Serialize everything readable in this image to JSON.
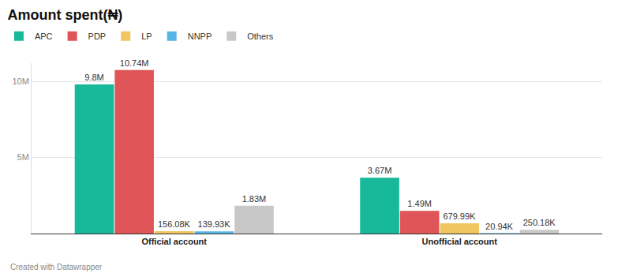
{
  "chart_data": {
    "type": "bar",
    "title": "Amount spent(₦)",
    "annotations": [
      "Created with Datawrapper"
    ],
    "categories": [
      "Official account",
      "Unofficial account"
    ],
    "series": [
      {
        "name": "APC",
        "color": "#18b99b",
        "values": [
          9800000,
          3670000
        ],
        "value_labels": [
          "9.8M",
          "3.67M"
        ]
      },
      {
        "name": "PDP",
        "color": "#e05557",
        "values": [
          10740000,
          1490000
        ],
        "value_labels": [
          "10.74M",
          "1.49M"
        ]
      },
      {
        "name": "LP",
        "color": "#f0c75e",
        "values": [
          156080,
          679990
        ],
        "value_labels": [
          "156.08K",
          "679.99K"
        ]
      },
      {
        "name": "NNPP",
        "color": "#55b6e6",
        "values": [
          139930,
          20940
        ],
        "value_labels": [
          "139.93K",
          "20.94K"
        ]
      },
      {
        "name": "Others",
        "color": "#c8c8c8",
        "values": [
          1830000,
          250180
        ],
        "value_labels": [
          "1.83M",
          "250.18K"
        ]
      }
    ],
    "ylim": [
      0,
      11200000
    ],
    "yticks": [
      {
        "value": 5000000,
        "label": "5M"
      },
      {
        "value": 10000000,
        "label": "10M"
      }
    ],
    "grid": true,
    "legend": "top-left",
    "data_labels": true
  }
}
